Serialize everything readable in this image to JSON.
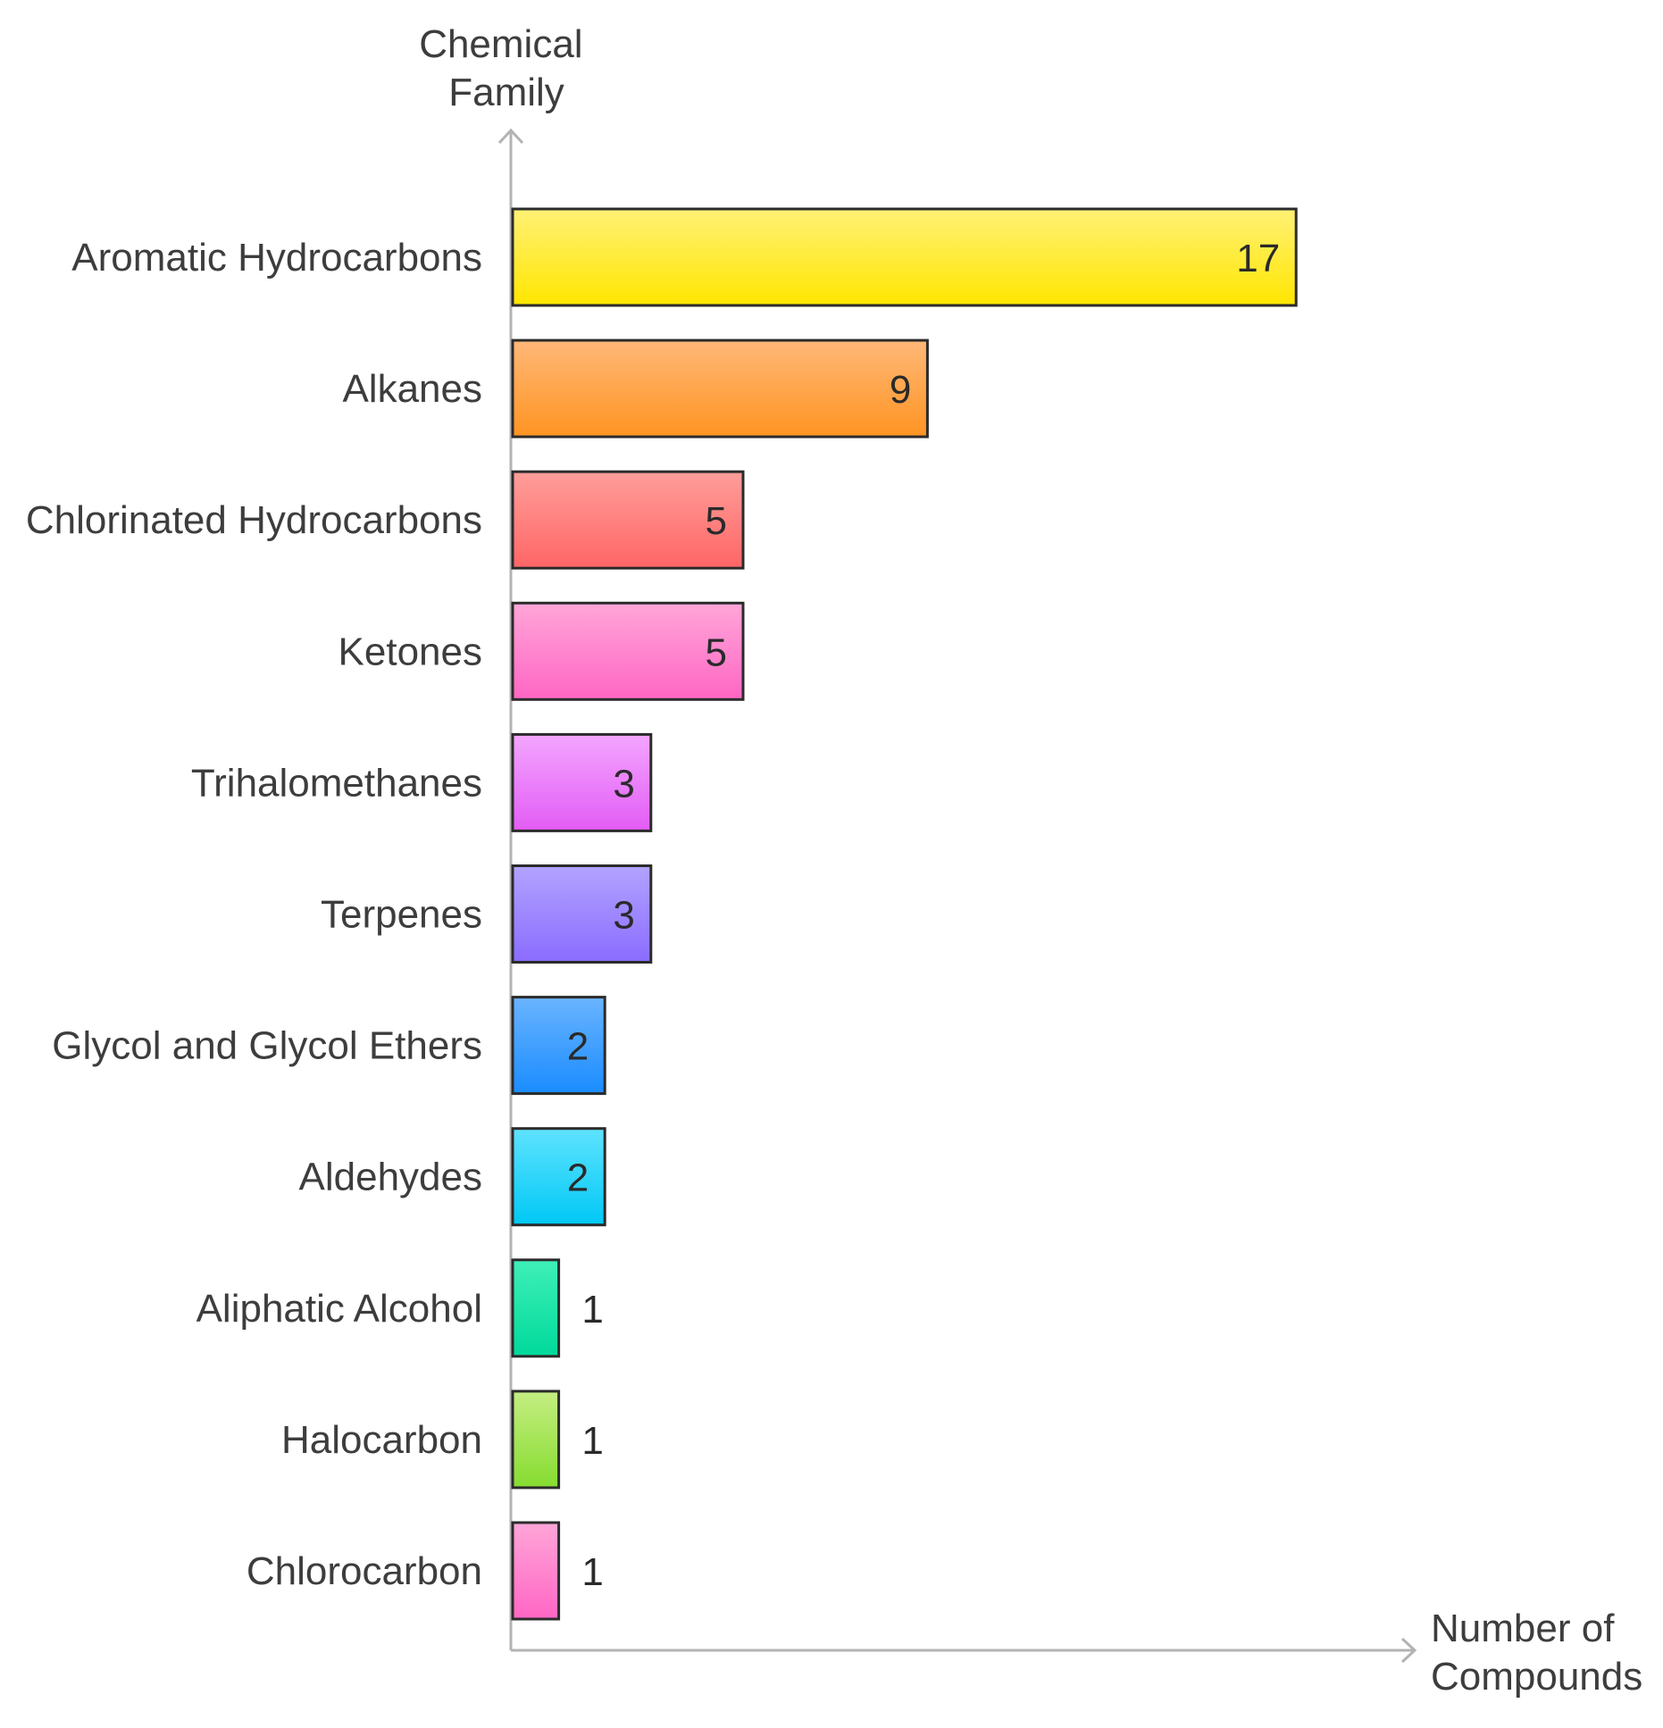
{
  "chart_data": {
    "type": "bar",
    "orientation": "horizontal",
    "title": "",
    "ylabel": [
      "Chemical",
      "Family"
    ],
    "xlabel": [
      "Number of",
      "Compounds"
    ],
    "xlim": [
      0,
      20
    ],
    "grid": false,
    "legend": "none",
    "categories": [
      "Aromatic Hydrocarbons",
      "Alkanes",
      "Chlorinated Hydrocarbons",
      "Ketones",
      "Trihalomethanes",
      "Terpenes",
      "Glycol and Glycol Ethers",
      "Aldehydes",
      "Aliphatic Alcohol",
      "Halocarbon",
      "Chlorocarbon"
    ],
    "values": [
      17,
      9,
      5,
      5,
      3,
      3,
      2,
      2,
      1,
      1,
      1
    ],
    "value_labels": [
      "17",
      "9",
      "5",
      "5",
      "3",
      "3",
      "2",
      "2",
      "1",
      "1",
      "1"
    ],
    "colors": [
      [
        "#fff176",
        "#ffe600"
      ],
      [
        "#ffb878",
        "#ff9422"
      ],
      [
        "#ff9e9a",
        "#ff6666"
      ],
      [
        "#ffa6d8",
        "#ff66c4"
      ],
      [
        "#f3a6ff",
        "#e35cf5"
      ],
      [
        "#b3a3ff",
        "#8a6cff"
      ],
      [
        "#6ab4ff",
        "#1a8cff"
      ],
      [
        "#5fe3ff",
        "#00c8f5"
      ],
      [
        "#3ff0b8",
        "#00d99a"
      ],
      [
        "#c5ee82",
        "#86dc30"
      ],
      [
        "#ffa6d8",
        "#ff66c4"
      ]
    ]
  }
}
